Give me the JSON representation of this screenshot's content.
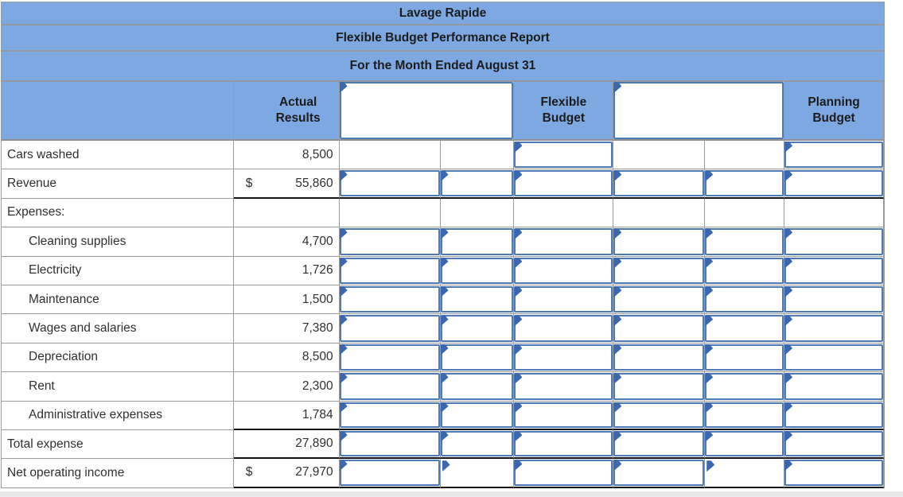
{
  "report": {
    "titles": [
      "Lavage Rapide",
      "Flexible Budget Performance Report",
      "For the Month Ended August 31"
    ],
    "columns": {
      "actual": "Actual Results",
      "flexible": "Flexible Budget",
      "planning": "Planning Budget"
    },
    "rows": [
      {
        "label": "Cars washed",
        "actual": "8,500"
      },
      {
        "label": "Revenue",
        "currency": "$",
        "actual": "55,860"
      },
      {
        "label": "Expenses:",
        "actual": ""
      },
      {
        "label": "Cleaning supplies",
        "actual": "4,700"
      },
      {
        "label": "Electricity",
        "actual": "1,726"
      },
      {
        "label": "Maintenance",
        "actual": "1,500"
      },
      {
        "label": "Wages and salaries",
        "actual": "7,380"
      },
      {
        "label": "Depreciation",
        "actual": "8,500"
      },
      {
        "label": "Rent",
        "actual": "2,300"
      },
      {
        "label": "Administrative expenses",
        "actual": "1,784"
      },
      {
        "label": "Total expense",
        "actual": "27,890"
      },
      {
        "label": "Net operating income",
        "currency": "$",
        "actual": "27,970"
      }
    ],
    "input_boxes": {
      "value": ""
    },
    "colors": {
      "band_blue": "#7EA8E1",
      "box_border_blue": "#4F7AB8",
      "flag_blue": "#3A67AE",
      "grid_gray": "#9b9b9b",
      "rule_black": "#141414"
    }
  }
}
